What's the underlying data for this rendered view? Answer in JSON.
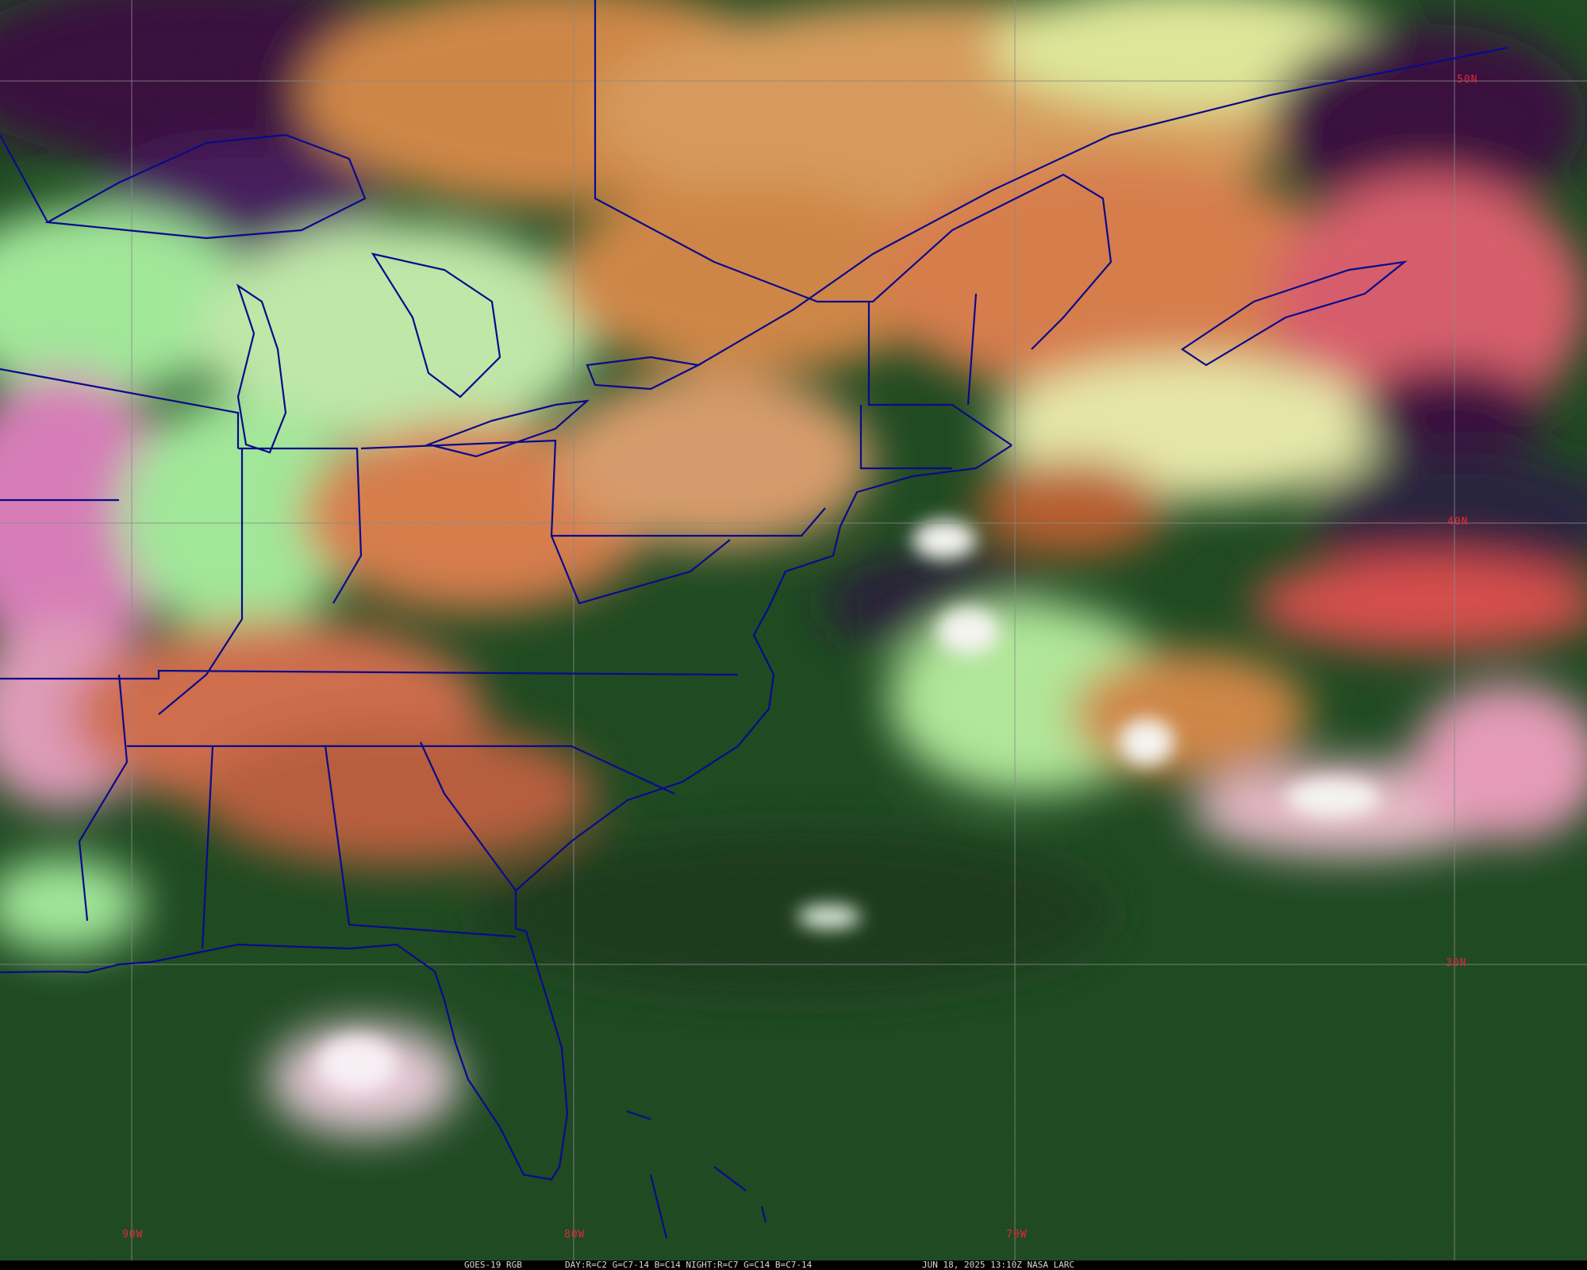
{
  "caption": {
    "product": "GOES-19 RGB",
    "recipe": "DAY:R=C2 G=C7-14 B=C14 NIGHT:R=C7 G=C14 B=C7-14",
    "timestamp": "JUN 18, 2025 13:10Z NASA LARC"
  },
  "grid": {
    "lat_labels": [
      "50N",
      "40N",
      "30N"
    ],
    "lon_labels": [
      "90W",
      "80W",
      "70W"
    ],
    "label_color": "#e0283c",
    "line_color": "#8a8a8a"
  },
  "colors": {
    "boundaries": "#0a0a8c",
    "clear_land_ocean": "#1f4a22",
    "low_cloud": "#a8f0a0",
    "mid_cloud": "#d88a4a",
    "high_cloud": "#e070a0",
    "cold_top": "#f4f4f0",
    "night_ice": "#3a1040"
  }
}
